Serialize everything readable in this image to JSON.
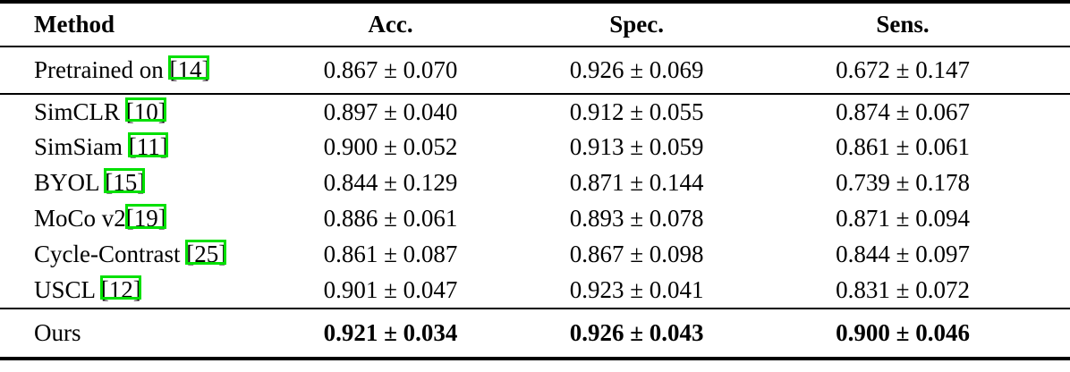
{
  "accent_green": "#00e000",
  "table": {
    "headers": {
      "method": "Method",
      "acc": "Acc.",
      "spec": "Spec.",
      "sens": "Sens."
    },
    "rows": [
      {
        "method": "Pretrained on ",
        "cite": "[14]",
        "acc": "0.867 ± 0.070",
        "spec": "0.926 ± 0.069",
        "sens": "0.672 ± 0.147"
      },
      {
        "method": "SimCLR ",
        "cite": "[10]",
        "acc": "0.897 ± 0.040",
        "spec": "0.912 ± 0.055",
        "sens": "0.874 ± 0.067"
      },
      {
        "method": "SimSiam ",
        "cite": "[11]",
        "acc": "0.900 ± 0.052",
        "spec": "0.913 ± 0.059",
        "sens": "0.861 ± 0.061"
      },
      {
        "method": "BYOL ",
        "cite": "[15]",
        "acc": "0.844 ± 0.129",
        "spec": "0.871 ± 0.144",
        "sens": "0.739 ± 0.178"
      },
      {
        "method": "MoCo v2",
        "cite": "[19]",
        "acc": "0.886 ± 0.061",
        "spec": "0.893 ± 0.078",
        "sens": "0.871 ± 0.094"
      },
      {
        "method": "Cycle-Contrast ",
        "cite": "[25]",
        "acc": "0.861 ± 0.087",
        "spec": "0.867 ± 0.098",
        "sens": "0.844 ± 0.097"
      },
      {
        "method": "USCL ",
        "cite": "[12]",
        "acc": "0.901 ± 0.047",
        "spec": "0.923 ± 0.041",
        "sens": "0.831 ± 0.072"
      },
      {
        "method": "Ours",
        "cite": "",
        "acc": "0.921 ± 0.034",
        "spec": "0.926 ± 0.043",
        "sens": "0.900 ± 0.046"
      }
    ]
  }
}
